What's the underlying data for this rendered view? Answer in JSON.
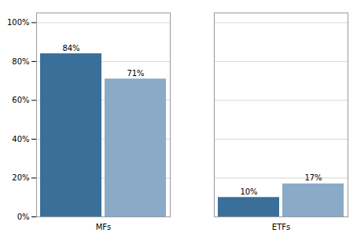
{
  "chart_data": {
    "type": "bar",
    "categories": [
      "MFs",
      "ETFs"
    ],
    "series": [
      {
        "color": "#3A6F9A",
        "values": [
          84,
          10
        ],
        "value_labels": [
          "84%",
          "10%"
        ]
      },
      {
        "color": "#8BAAC8",
        "values": [
          71,
          17
        ],
        "value_labels": [
          "71%",
          "17%"
        ]
      }
    ],
    "ylim": [
      0,
      105
    ],
    "yticks": [
      {
        "value": 0,
        "label": "0%"
      },
      {
        "value": 20,
        "label": "20%"
      },
      {
        "value": 40,
        "label": "40%"
      },
      {
        "value": 60,
        "label": "60%"
      },
      {
        "value": 80,
        "label": "80%"
      },
      {
        "value": 100,
        "label": "100%"
      }
    ],
    "grid": true,
    "data_labels": true
  }
}
